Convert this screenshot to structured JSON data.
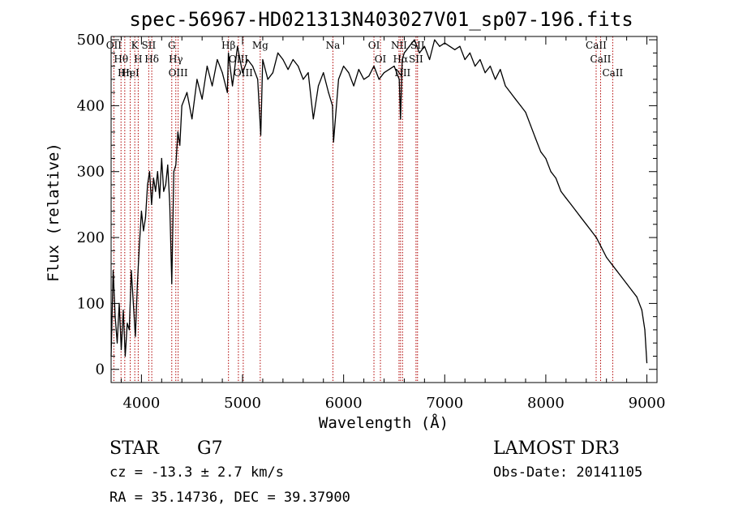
{
  "chart_data": {
    "type": "line",
    "title": "spec-56967-HD021313N403027V01_sp07-196.fits",
    "xlabel": "Wavelength (Å)",
    "ylabel": "Flux (relative)",
    "xlim": [
      3700,
      9100
    ],
    "ylim": [
      -20,
      505
    ],
    "x_ticks": [
      4000,
      5000,
      6000,
      7000,
      8000,
      9000
    ],
    "y_ticks": [
      0,
      100,
      200,
      300,
      400,
      500
    ],
    "grid": false,
    "series": [
      {
        "x": [
          3700,
          3720,
          3740,
          3760,
          3780,
          3800,
          3820,
          3840,
          3860,
          3880,
          3900,
          3920,
          3940,
          3960,
          3980,
          4000,
          4020,
          4040,
          4060,
          4080,
          4100,
          4120,
          4140,
          4160,
          4180,
          4200,
          4220,
          4240,
          4260,
          4280,
          4300,
          4320,
          4340,
          4360,
          4380,
          4400,
          4450,
          4500,
          4550,
          4600,
          4650,
          4700,
          4750,
          4800,
          4850,
          4860,
          4900,
          4950,
          5000,
          5050,
          5100,
          5150,
          5180,
          5200,
          5250,
          5300,
          5350,
          5400,
          5450,
          5500,
          5550,
          5600,
          5650,
          5700,
          5750,
          5800,
          5850,
          5890,
          5900,
          5950,
          6000,
          6050,
          6100,
          6150,
          6200,
          6250,
          6300,
          6350,
          6400,
          6450,
          6500,
          6550,
          6563,
          6580,
          6600,
          6650,
          6700,
          6750,
          6800,
          6850,
          6900,
          6950,
          7000,
          7050,
          7100,
          7150,
          7200,
          7250,
          7300,
          7350,
          7400,
          7450,
          7500,
          7550,
          7600,
          7650,
          7700,
          7750,
          7800,
          7850,
          7900,
          7950,
          8000,
          8050,
          8100,
          8150,
          8200,
          8250,
          8300,
          8350,
          8400,
          8450,
          8500,
          8550,
          8600,
          8650,
          8700,
          8750,
          8800,
          8850,
          8900,
          8950,
          8980,
          9000
        ],
        "values": [
          20,
          150,
          80,
          40,
          100,
          30,
          90,
          20,
          70,
          60,
          150,
          100,
          50,
          130,
          190,
          240,
          210,
          230,
          280,
          300,
          250,
          290,
          270,
          300,
          260,
          320,
          270,
          280,
          310,
          250,
          130,
          300,
          310,
          360,
          340,
          400,
          420,
          380,
          440,
          410,
          460,
          430,
          470,
          450,
          420,
          480,
          430,
          490,
          450,
          470,
          460,
          440,
          355,
          470,
          440,
          450,
          480,
          470,
          455,
          470,
          460,
          440,
          450,
          380,
          430,
          450,
          420,
          400,
          345,
          440,
          460,
          450,
          430,
          455,
          440,
          445,
          460,
          440,
          450,
          455,
          460,
          440,
          380,
          470,
          480,
          490,
          500,
          480,
          490,
          470,
          500,
          490,
          495,
          490,
          485,
          490,
          470,
          480,
          460,
          470,
          450,
          460,
          440,
          455,
          430,
          420,
          410,
          400,
          390,
          370,
          350,
          330,
          320,
          300,
          290,
          270,
          260,
          250,
          240,
          230,
          220,
          210,
          200,
          185,
          170,
          160,
          150,
          140,
          130,
          120,
          110,
          90,
          60,
          10
        ]
      }
    ],
    "line_markers": [
      {
        "wavelength": 3727,
        "label": "OII"
      },
      {
        "wavelength": 3798,
        "label": "Hθ"
      },
      {
        "wavelength": 3835,
        "label": "Hη"
      },
      {
        "wavelength": 3889,
        "label": "HeI"
      },
      {
        "wavelength": 3934,
        "label": "K"
      },
      {
        "wavelength": 3968,
        "label": "H"
      },
      {
        "wavelength": 4072,
        "label": "SII"
      },
      {
        "wavelength": 4102,
        "label": "Hδ"
      },
      {
        "wavelength": 4300,
        "label": "G"
      },
      {
        "wavelength": 4340,
        "label": "Hγ"
      },
      {
        "wavelength": 4363,
        "label": "OIII"
      },
      {
        "wavelength": 4861,
        "label": "Hβ"
      },
      {
        "wavelength": 4959,
        "label": "OIII"
      },
      {
        "wavelength": 5007,
        "label": "OIII"
      },
      {
        "wavelength": 5175,
        "label": "Mg"
      },
      {
        "wavelength": 5894,
        "label": "Na"
      },
      {
        "wavelength": 6300,
        "label": "OI"
      },
      {
        "wavelength": 6364,
        "label": "OI"
      },
      {
        "wavelength": 6548,
        "label": "NII"
      },
      {
        "wavelength": 6563,
        "label": "Hα"
      },
      {
        "wavelength": 6583,
        "label": "NII"
      },
      {
        "wavelength": 6716,
        "label": "SII"
      },
      {
        "wavelength": 6731,
        "label": "SII"
      },
      {
        "wavelength": 8498,
        "label": "CaII"
      },
      {
        "wavelength": 8542,
        "label": "CaII"
      },
      {
        "wavelength": 8662,
        "label": "CaII"
      }
    ],
    "line_marker_color": "#b00000",
    "trace_color": "#000000"
  },
  "info": {
    "object_class": "STAR",
    "subclass": "G7",
    "survey": "LAMOST DR3",
    "redshift": "cz = -13.3 ± 2.7 km/s",
    "obs_date": "Obs-Date: 20141105",
    "coordinates": "RA =  35.14736, DEC =  39.37900"
  }
}
